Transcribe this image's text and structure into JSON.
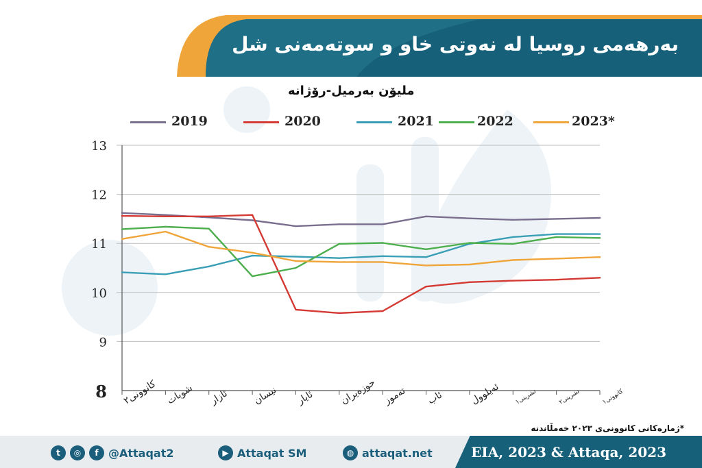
{
  "header": {
    "title": "بەرهەمی روسیا لە نەوتی خاو و سوتەمەنی شل"
  },
  "chart_data": {
    "type": "line",
    "subtitle": "ملیۆن بەرمیل-رۆژانە",
    "categories": [
      "کانوونی٢",
      "شوبات",
      "ئازار",
      "نیسان",
      "ئایار",
      "حوزەیران",
      "تەموز",
      "ئاب",
      "ئەیلوول",
      "تشرینی١",
      "تشرینی٢",
      "کانوونی١"
    ],
    "y_ticks": [
      "13",
      "12",
      "11",
      "10",
      "9",
      "8"
    ],
    "ylim": [
      8,
      13
    ],
    "grid": "horizontal",
    "legend_position": "top",
    "series": [
      {
        "name": "2019",
        "color": "#7a6e8f",
        "values": [
          11.62,
          11.58,
          11.53,
          11.47,
          11.35,
          11.39,
          11.39,
          11.55,
          11.51,
          11.48,
          11.5,
          11.52
        ]
      },
      {
        "name": "2020",
        "color": "#d43a33",
        "values": [
          11.56,
          11.55,
          11.55,
          11.58,
          9.65,
          9.58,
          9.62,
          10.12,
          10.21,
          10.24,
          10.26,
          10.3
        ]
      },
      {
        "name": "2021",
        "color": "#3a9fb6",
        "values": [
          10.41,
          10.37,
          10.53,
          10.75,
          10.73,
          10.7,
          10.74,
          10.72,
          10.99,
          11.13,
          11.19,
          11.19
        ]
      },
      {
        "name": "2022",
        "color": "#4cae4c",
        "values": [
          11.29,
          11.34,
          11.3,
          10.33,
          10.5,
          10.99,
          11.01,
          10.88,
          11.01,
          10.99,
          11.13,
          11.11
        ]
      },
      {
        "name": "2023*",
        "color": "#f0a53a",
        "values": [
          11.09,
          11.24,
          10.93,
          10.81,
          10.64,
          10.62,
          10.62,
          10.55,
          10.57,
          10.66,
          10.69,
          10.72
        ]
      }
    ]
  },
  "footnote": "*ژمارەکانی کانوونی‌ی ٢٠٢٣ خەمڵاندنە",
  "footer": {
    "social": {
      "handle": "@Attaqat2",
      "youtube": "Attaqat SM",
      "site": "attaqat.net"
    },
    "source": "EIA, 2023 & Attaqa, 2023"
  },
  "colors": {
    "header_blue": "#17607a",
    "header_orange": "#f0a53a",
    "footer_bg": "#e8ecef"
  }
}
